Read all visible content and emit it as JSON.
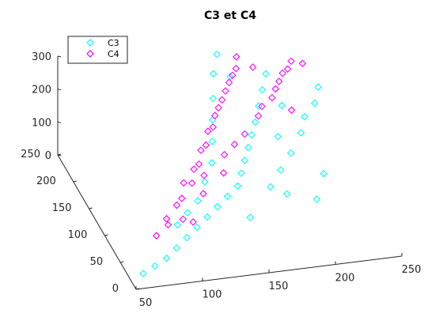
{
  "chart_data": {
    "type": "scatter",
    "title": "C3 et C4",
    "xlabel": "",
    "ylabel": "",
    "zlabel": "",
    "projection": "3d",
    "xlim": [
      50,
      250
    ],
    "ylim": [
      0,
      250
    ],
    "zlim": [
      0,
      300
    ],
    "x_ticks": [
      "50",
      "100",
      "150",
      "200",
      "250"
    ],
    "y_ticks": [
      "0",
      "50",
      "100",
      "150",
      "200",
      "250"
    ],
    "z_ticks": [
      "0",
      "100",
      "200",
      "300"
    ],
    "grid": false,
    "legend_position": "top-left",
    "marker": "diamond",
    "series": [
      {
        "name": "C3",
        "color": "#00ffff",
        "points": [
          [
            60,
            20,
            10
          ],
          [
            70,
            25,
            20
          ],
          [
            80,
            30,
            30
          ],
          [
            90,
            40,
            40
          ],
          [
            100,
            50,
            50
          ],
          [
            110,
            60,
            60
          ],
          [
            120,
            70,
            70
          ],
          [
            130,
            80,
            80
          ],
          [
            140,
            90,
            90
          ],
          [
            150,
            100,
            100
          ],
          [
            155,
            110,
            120
          ],
          [
            160,
            120,
            140
          ],
          [
            165,
            130,
            160
          ],
          [
            170,
            140,
            180
          ],
          [
            175,
            150,
            200
          ],
          [
            180,
            160,
            230
          ],
          [
            185,
            170,
            260
          ],
          [
            190,
            180,
            290
          ],
          [
            100,
            80,
            40
          ],
          [
            110,
            90,
            55
          ],
          [
            120,
            100,
            70
          ],
          [
            130,
            120,
            90
          ],
          [
            140,
            140,
            110
          ],
          [
            145,
            160,
            140
          ],
          [
            150,
            180,
            170
          ],
          [
            155,
            200,
            200
          ],
          [
            160,
            220,
            240
          ],
          [
            165,
            230,
            280
          ],
          [
            150,
            60,
            70
          ],
          [
            170,
            80,
            120
          ],
          [
            180,
            90,
            150
          ],
          [
            190,
            100,
            180
          ],
          [
            200,
            110,
            220
          ],
          [
            205,
            120,
            250
          ],
          [
            215,
            130,
            270
          ],
          [
            220,
            140,
            300
          ],
          [
            180,
            70,
            110
          ],
          [
            200,
            60,
            100
          ],
          [
            210,
            80,
            140
          ],
          [
            185,
            120,
            200
          ],
          [
            195,
            150,
            240
          ],
          [
            168,
            200,
            260
          ]
        ]
      },
      {
        "name": "C4",
        "color": "#ff00ff",
        "points": [
          [
            70,
            20,
            120
          ],
          [
            80,
            30,
            150
          ],
          [
            90,
            40,
            170
          ],
          [
            100,
            60,
            200
          ],
          [
            110,
            70,
            220
          ],
          [
            120,
            90,
            240
          ],
          [
            130,
            110,
            260
          ],
          [
            140,
            130,
            270
          ],
          [
            150,
            150,
            280
          ],
          [
            160,
            170,
            295
          ],
          [
            170,
            190,
            300
          ],
          [
            175,
            210,
            300
          ],
          [
            80,
            25,
            140
          ],
          [
            95,
            45,
            180
          ],
          [
            105,
            55,
            205
          ],
          [
            115,
            75,
            225
          ],
          [
            125,
            95,
            245
          ],
          [
            135,
            115,
            262
          ],
          [
            145,
            140,
            275
          ],
          [
            155,
            160,
            288
          ],
          [
            165,
            180,
            298
          ],
          [
            120,
            80,
            180
          ],
          [
            140,
            100,
            200
          ],
          [
            160,
            120,
            220
          ],
          [
            175,
            140,
            235
          ],
          [
            190,
            160,
            250
          ],
          [
            200,
            180,
            262
          ],
          [
            210,
            195,
            270
          ],
          [
            150,
            110,
            210
          ],
          [
            180,
            150,
            245
          ],
          [
            195,
            170,
            258
          ],
          [
            205,
            190,
            268
          ],
          [
            185,
            200,
            280
          ],
          [
            215,
            205,
            275
          ],
          [
            90,
            20,
            160
          ],
          [
            110,
            40,
            195
          ],
          [
            130,
            60,
            215
          ],
          [
            100,
            30,
            130
          ],
          [
            200,
            140,
            240
          ],
          [
            220,
            190,
            290
          ]
        ]
      }
    ]
  }
}
